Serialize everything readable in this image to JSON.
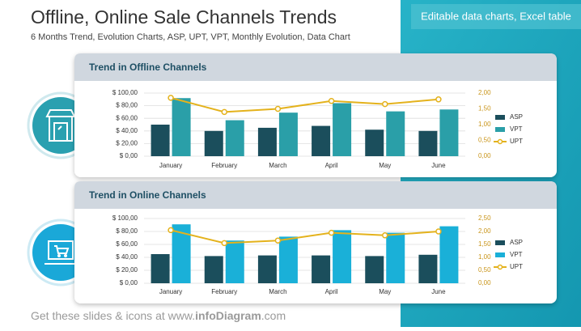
{
  "slide": {
    "title": "Offline, Online Sale Channels Trends",
    "subtitle": "6 Months Trend, Evolution Charts, ASP, UPT, VPT, Monthly Evolution, Data Chart",
    "banner": "Editable data charts, Excel table",
    "footer": [
      "Get these slides & icons at www.",
      "infoDiagram",
      ".com"
    ]
  },
  "chart_data": [
    {
      "type": "combo",
      "title": "Trend in Offline Channels",
      "categories": [
        "January",
        "February",
        "March",
        "April",
        "May",
        "June"
      ],
      "series": [
        {
          "name": "ASP",
          "type": "bar",
          "color": "#1b4e5c",
          "values": [
            50,
            40,
            45,
            48,
            42,
            40
          ]
        },
        {
          "name": "VPT",
          "type": "bar",
          "color": "#2a9fa8",
          "values": [
            92,
            57,
            69,
            84,
            71,
            74
          ]
        },
        {
          "name": "UPT",
          "type": "line",
          "axis": "y2",
          "color": "#e4b21c",
          "values": [
            1.85,
            1.4,
            1.5,
            1.75,
            1.65,
            1.8
          ]
        }
      ],
      "ylim": [
        0,
        100
      ],
      "yticks": [
        {
          "value": 0,
          "label": "$ 0,00"
        },
        {
          "value": 20,
          "label": "$ 20,00"
        },
        {
          "value": 40,
          "label": "$ 40,00"
        },
        {
          "value": 60,
          "label": "$ 60,00"
        },
        {
          "value": 80,
          "label": "$ 80,00"
        },
        {
          "value": 100,
          "label": "$ 100,00"
        }
      ],
      "y2lim": [
        0,
        2
      ],
      "y2ticks": [
        {
          "value": 0,
          "label": "0,00"
        },
        {
          "value": 0.5,
          "label": "0,50"
        },
        {
          "value": 1,
          "label": "1,00"
        },
        {
          "value": 1.5,
          "label": "1,50"
        },
        {
          "value": 2,
          "label": "2,00"
        }
      ],
      "grid": true,
      "legend": "right"
    },
    {
      "type": "combo",
      "title": "Trend in Online Channels",
      "categories": [
        "January",
        "February",
        "March",
        "April",
        "May",
        "June"
      ],
      "series": [
        {
          "name": "ASP",
          "type": "bar",
          "color": "#1b4e5c",
          "values": [
            45,
            42,
            43,
            43,
            42,
            44
          ]
        },
        {
          "name": "VPT",
          "type": "bar",
          "color": "#1ab0d8",
          "values": [
            91,
            66,
            72,
            82,
            78,
            88
          ]
        },
        {
          "name": "UPT",
          "type": "line",
          "axis": "y2",
          "color": "#e4b21c",
          "values": [
            2.05,
            1.55,
            1.65,
            1.95,
            1.85,
            2.0
          ]
        }
      ],
      "ylim": [
        0,
        100
      ],
      "yticks": [
        {
          "value": 0,
          "label": "$ 0,00"
        },
        {
          "value": 20,
          "label": "$ 20,00"
        },
        {
          "value": 40,
          "label": "$ 40,00"
        },
        {
          "value": 60,
          "label": "$ 60,00"
        },
        {
          "value": 80,
          "label": "$ 80,00"
        },
        {
          "value": 100,
          "label": "$ 100,00"
        }
      ],
      "y2lim": [
        0,
        2.5
      ],
      "y2ticks": [
        {
          "value": 0,
          "label": "0,00"
        },
        {
          "value": 0.5,
          "label": "0,50"
        },
        {
          "value": 1,
          "label": "1,00"
        },
        {
          "value": 1.5,
          "label": "1,50"
        },
        {
          "value": 2,
          "label": "2,00"
        },
        {
          "value": 2.5,
          "label": "2,50"
        }
      ],
      "grid": true,
      "legend": "right"
    }
  ]
}
